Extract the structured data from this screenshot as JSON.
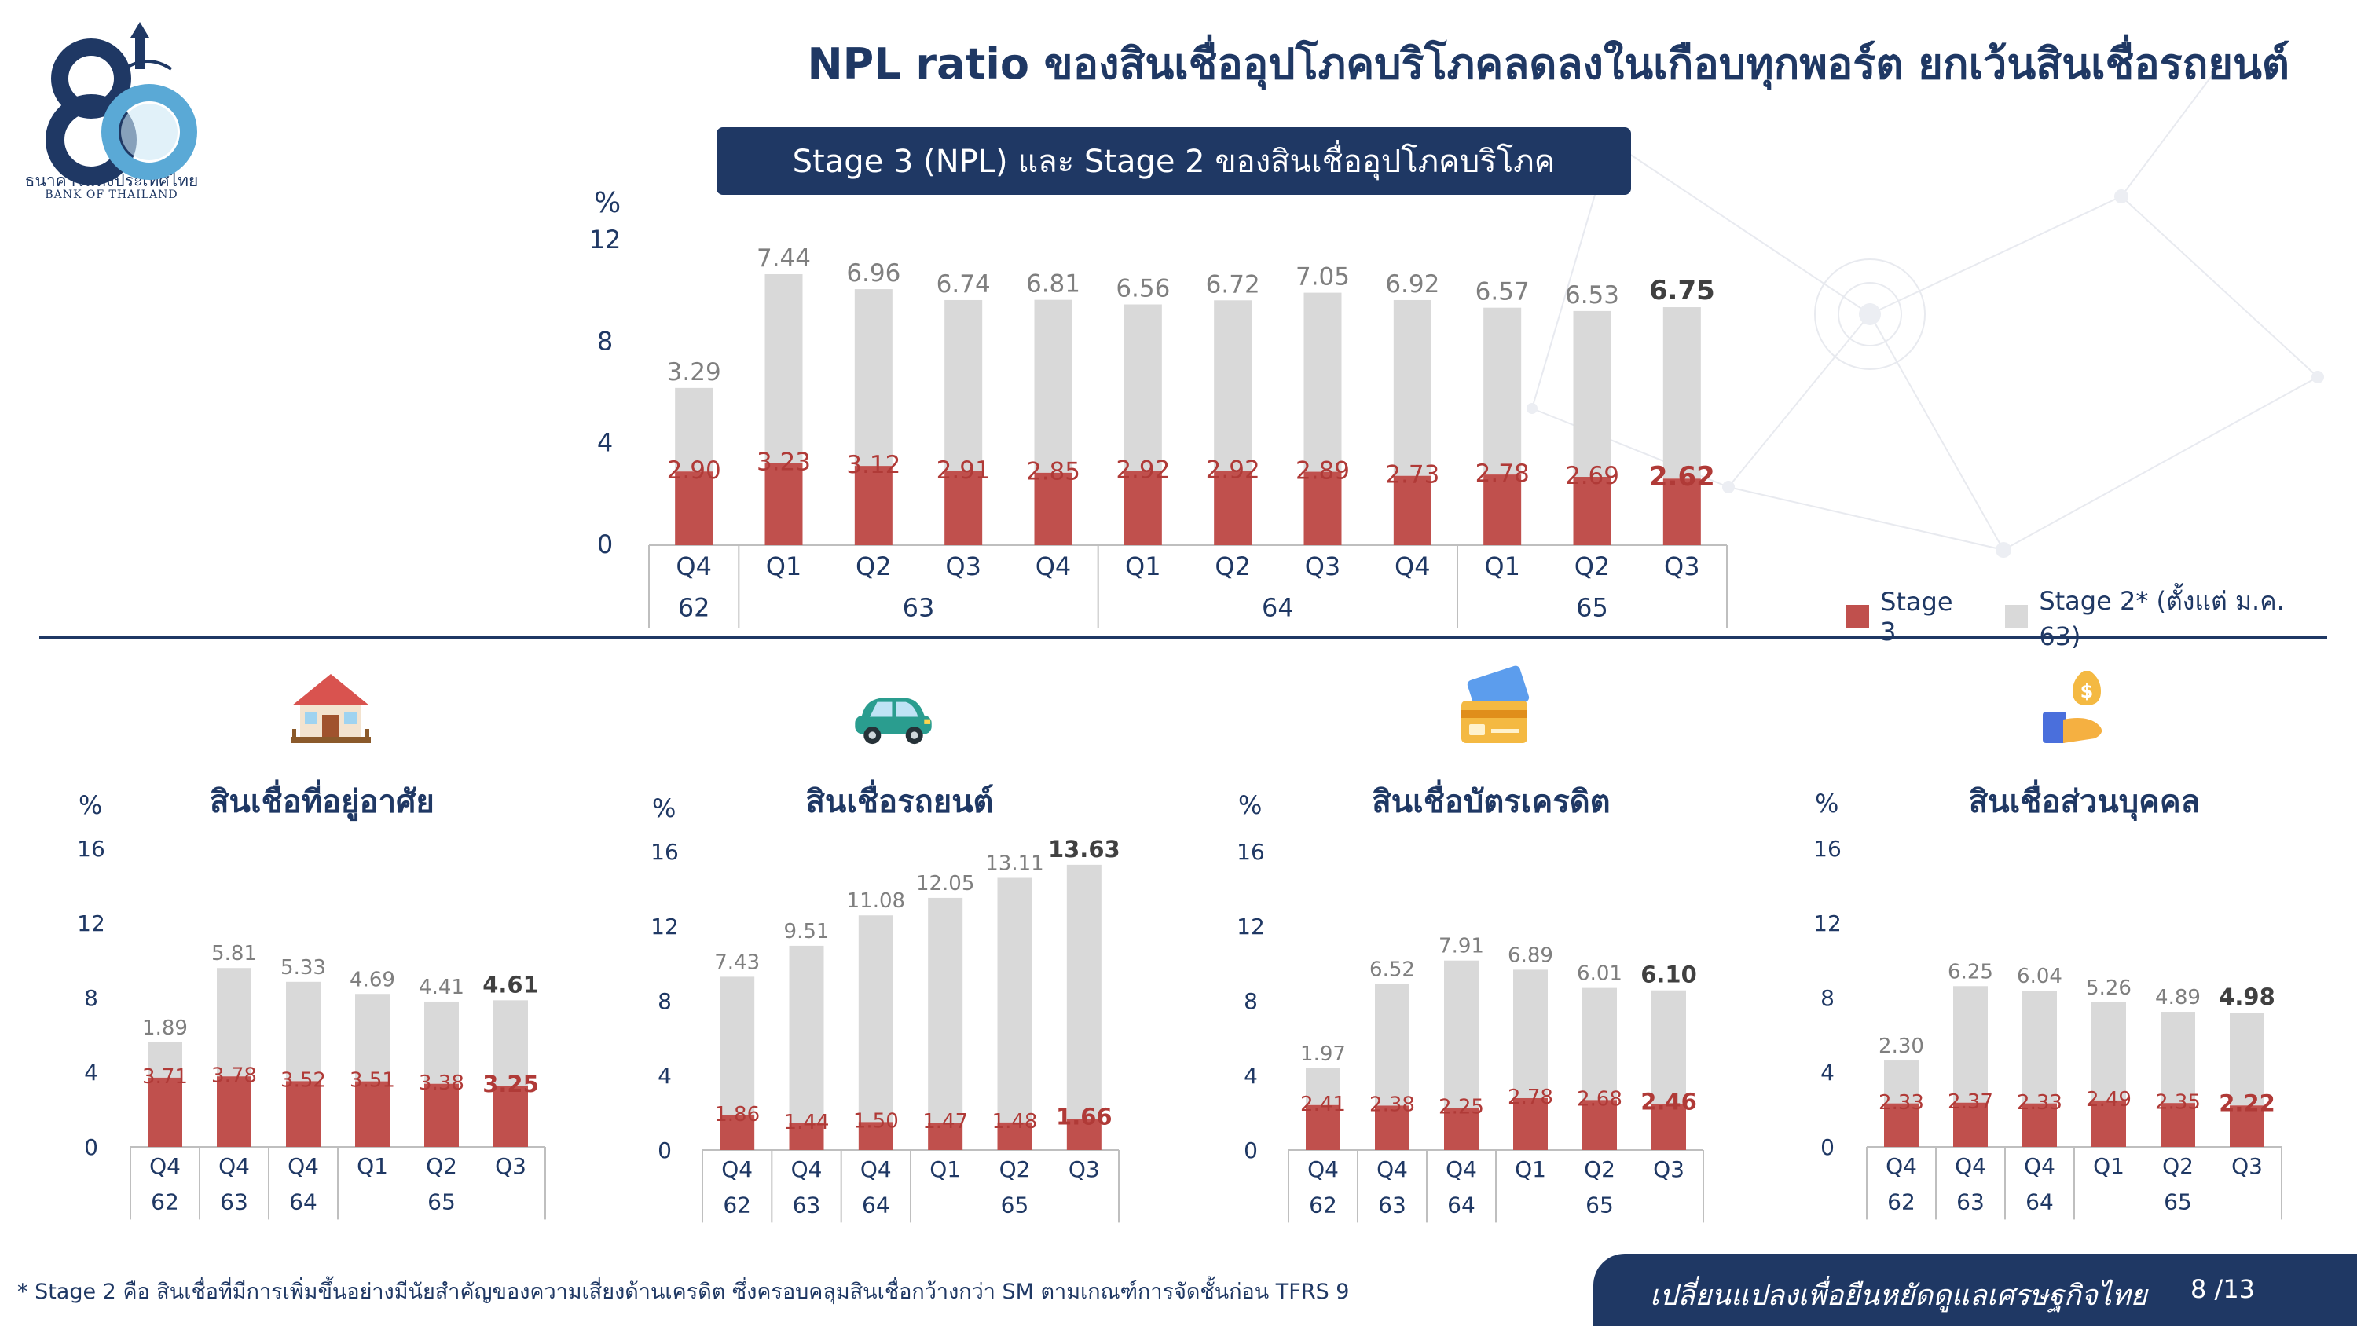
{
  "header": {
    "title": "NPL ratio ของสินเชื่ออุปโภคบริโภคลดลงในเกือบทุกพอร์ต ยกเว้นสินเชื่อรถยนต์",
    "subtitle": "Stage 3 (NPL) และ Stage 2 ของสินเชื่ออุปโภคบริโภค",
    "logo_th": "ธนาคารแห่งประเทศไทย",
    "logo_en": "BANK OF THAILAND",
    "logo_number": "80"
  },
  "legend": {
    "stage3": "Stage 3",
    "stage2": "Stage 2* (ตั้งแต่ ม.ค. 63)"
  },
  "colors": {
    "stage3": "#c0504d",
    "stage2": "#d9d9d9",
    "navy": "#1f3864",
    "stage2_label": "#7f7f7f"
  },
  "icons": [
    "house-icon",
    "car-icon",
    "credit-card-icon",
    "personal-loan-icon"
  ],
  "footer": {
    "footnote": "* Stage 2 คือ สินเชื่อที่มีการเพิ่มขึ้นอย่างมีนัยสำคัญของความเสี่ยงด้านเครดิต ซึ่งครอบคลุมสินเชื่อกว้างกว่า SM ตามเกณฑ์การจัดชั้นก่อน TFRS 9",
    "slogan": "เปลี่ยนแปลงเพื่อยืนหยัดดูแลเศรษฐกิจไทย",
    "page": "8 /13"
  },
  "chart_data": [
    {
      "id": "main",
      "type": "bar",
      "stacked": true,
      "ylabel": "%",
      "ylim": [
        0,
        12
      ],
      "yticks": [
        0,
        4,
        8,
        12
      ],
      "categories": [
        "Q4",
        "Q1",
        "Q2",
        "Q3",
        "Q4",
        "Q1",
        "Q2",
        "Q3",
        "Q4",
        "Q1",
        "Q2",
        "Q3"
      ],
      "groups": [
        {
          "label": "62",
          "count": 1
        },
        {
          "label": "63",
          "count": 4
        },
        {
          "label": "64",
          "count": 4
        },
        {
          "label": "65",
          "count": 3
        }
      ],
      "series": [
        {
          "name": "Stage 3",
          "values": [
            2.9,
            3.23,
            3.12,
            2.91,
            2.85,
            2.92,
            2.92,
            2.89,
            2.73,
            2.78,
            2.69,
            2.62
          ],
          "labels": [
            "2.90",
            "3.23",
            "3.12",
            "2.91",
            "2.85",
            "2.92",
            "2.92",
            "2.89",
            "2.73",
            "2.78",
            "2.69",
            "2.62"
          ]
        },
        {
          "name": "Stage 2* (ตั้งแต่ ม.ค. 63)",
          "values": [
            3.29,
            7.44,
            6.96,
            6.74,
            6.81,
            6.56,
            6.72,
            7.05,
            6.92,
            6.57,
            6.53,
            6.75
          ],
          "labels": [
            "3.29",
            "7.44",
            "6.96",
            "6.74",
            "6.81",
            "6.56",
            "6.72",
            "7.05",
            "6.92",
            "6.57",
            "6.53",
            "6.75"
          ]
        }
      ],
      "highlight_last": true
    },
    {
      "id": "housing",
      "type": "bar",
      "stacked": true,
      "title": "สินเชื่อที่อยู่อาศัย",
      "ylabel": "%",
      "ylim": [
        0,
        16
      ],
      "yticks": [
        0,
        4,
        8,
        12,
        16
      ],
      "categories": [
        "Q4",
        "Q4",
        "Q4",
        "Q1",
        "Q2",
        "Q3"
      ],
      "groups": [
        {
          "label": "62",
          "count": 1
        },
        {
          "label": "63",
          "count": 1
        },
        {
          "label": "64",
          "count": 1
        },
        {
          "label": "65",
          "count": 3
        }
      ],
      "series": [
        {
          "name": "Stage 3",
          "values": [
            3.71,
            3.78,
            3.52,
            3.51,
            3.38,
            3.25
          ],
          "labels": [
            "3.71",
            "3.78",
            "3.52",
            "3.51",
            "3.38",
            "3.25"
          ]
        },
        {
          "name": "Stage 2* (ตั้งแต่ ม.ค. 63)",
          "values": [
            1.89,
            5.81,
            5.33,
            4.69,
            4.41,
            4.61
          ],
          "labels": [
            "1.89",
            "5.81",
            "5.33",
            "4.69",
            "4.41",
            "4.61"
          ]
        }
      ],
      "highlight_last": true
    },
    {
      "id": "auto",
      "type": "bar",
      "stacked": true,
      "title": "สินเชื่อรถยนต์",
      "ylabel": "%",
      "ylim": [
        0,
        16
      ],
      "yticks": [
        0,
        4,
        8,
        12,
        16
      ],
      "categories": [
        "Q4",
        "Q4",
        "Q4",
        "Q1",
        "Q2",
        "Q3"
      ],
      "groups": [
        {
          "label": "62",
          "count": 1
        },
        {
          "label": "63",
          "count": 1
        },
        {
          "label": "64",
          "count": 1
        },
        {
          "label": "65",
          "count": 3
        }
      ],
      "series": [
        {
          "name": "Stage 3",
          "values": [
            1.86,
            1.44,
            1.5,
            1.47,
            1.48,
            1.66
          ],
          "labels": [
            "1.86",
            "1.44",
            "1.50",
            "1.47",
            "1.48",
            "1.66"
          ]
        },
        {
          "name": "Stage 2* (ตั้งแต่ ม.ค. 63)",
          "values": [
            7.43,
            9.51,
            11.08,
            12.05,
            13.11,
            13.63
          ],
          "labels": [
            "7.43",
            "9.51",
            "11.08",
            "12.05",
            "13.11",
            "13.63"
          ]
        }
      ],
      "highlight_last": true
    },
    {
      "id": "credit_card",
      "type": "bar",
      "stacked": true,
      "title": "สินเชื่อบัตรเครดิต",
      "ylabel": "%",
      "ylim": [
        0,
        16
      ],
      "yticks": [
        0,
        4,
        8,
        12,
        16
      ],
      "categories": [
        "Q4",
        "Q4",
        "Q4",
        "Q1",
        "Q2",
        "Q3"
      ],
      "groups": [
        {
          "label": "62",
          "count": 1
        },
        {
          "label": "63",
          "count": 1
        },
        {
          "label": "64",
          "count": 1
        },
        {
          "label": "65",
          "count": 3
        }
      ],
      "series": [
        {
          "name": "Stage 3",
          "values": [
            2.41,
            2.38,
            2.25,
            2.78,
            2.68,
            2.46
          ],
          "labels": [
            "2.41",
            "2.38",
            "2.25",
            "2.78",
            "2.68",
            "2.46"
          ]
        },
        {
          "name": "Stage 2* (ตั้งแต่ ม.ค. 63)",
          "values": [
            1.97,
            6.52,
            7.91,
            6.89,
            6.01,
            6.1
          ],
          "labels": [
            "1.97",
            "6.52",
            "7.91",
            "6.89",
            "6.01",
            "6.10"
          ]
        }
      ],
      "highlight_last": true
    },
    {
      "id": "personal",
      "type": "bar",
      "stacked": true,
      "title": "สินเชื่อส่วนบุคคล",
      "ylabel": "%",
      "ylim": [
        0,
        16
      ],
      "yticks": [
        0,
        4,
        8,
        12,
        16
      ],
      "categories": [
        "Q4",
        "Q4",
        "Q4",
        "Q1",
        "Q2",
        "Q3"
      ],
      "groups": [
        {
          "label": "62",
          "count": 1
        },
        {
          "label": "63",
          "count": 1
        },
        {
          "label": "64",
          "count": 1
        },
        {
          "label": "65",
          "count": 3
        }
      ],
      "series": [
        {
          "name": "Stage 3",
          "values": [
            2.33,
            2.37,
            2.33,
            2.49,
            2.35,
            2.22
          ],
          "labels": [
            "2.33",
            "2.37",
            "2.33",
            "2.49",
            "2.35",
            "2.22"
          ]
        },
        {
          "name": "Stage 2* (ตั้งแต่ ม.ค. 63)",
          "values": [
            2.3,
            6.25,
            6.04,
            5.26,
            4.89,
            4.98
          ],
          "labels": [
            "2.30",
            "6.25",
            "6.04",
            "5.26",
            "4.89",
            "4.98"
          ]
        }
      ],
      "highlight_last": true
    }
  ]
}
